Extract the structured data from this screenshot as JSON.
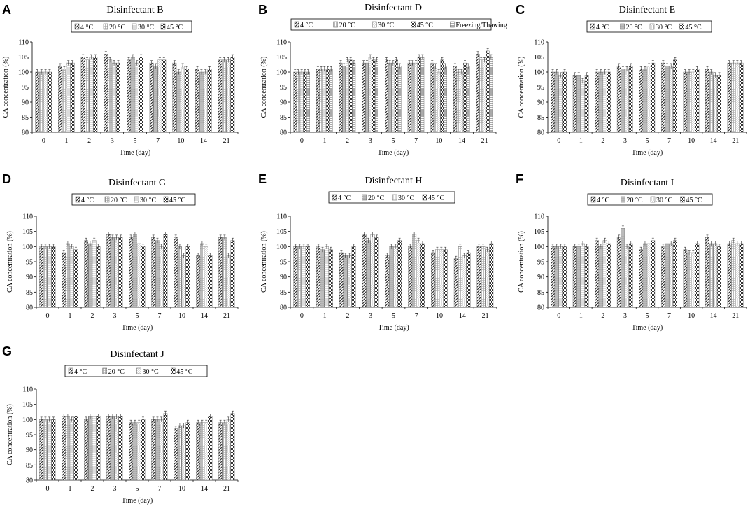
{
  "figure": {
    "xlabel": "Time (day)",
    "ylabel": "CA concentration (%)",
    "colors": {
      "bar_stroke": "#444444",
      "axis": "#000000",
      "background": "#ffffff"
    }
  },
  "chart_data": [
    {
      "type": "bar",
      "panel": "A",
      "title": "Disinfectant B",
      "xlabel": "Time (day)",
      "ylabel": "CA concentration (%)",
      "categories": [
        "0",
        "1",
        "2",
        "3",
        "5",
        "7",
        "10",
        "14",
        "21"
      ],
      "ylim": [
        80,
        110
      ],
      "yticks": [
        80,
        85,
        90,
        95,
        100,
        105,
        110
      ],
      "series": [
        {
          "name": "4 °C",
          "values": [
            100,
            102,
            105,
            106,
            104,
            103,
            103,
            101,
            104
          ]
        },
        {
          "name": "20 °C",
          "values": [
            100,
            101,
            104,
            104,
            105,
            102,
            100,
            100,
            104
          ]
        },
        {
          "name": "30 °C",
          "values": [
            100,
            103,
            105,
            103,
            103,
            104,
            102,
            100,
            104
          ]
        },
        {
          "name": "45 °C",
          "values": [
            100,
            103,
            105,
            103,
            105,
            104,
            101,
            101,
            105
          ]
        }
      ]
    },
    {
      "type": "bar",
      "panel": "B",
      "title": "Disinfectant D",
      "xlabel": "Time (day)",
      "ylabel": "CA concentration (%)",
      "categories": [
        "0",
        "1",
        "2",
        "3",
        "5",
        "7",
        "10",
        "14",
        "21"
      ],
      "ylim": [
        80,
        110
      ],
      "yticks": [
        80,
        85,
        90,
        95,
        100,
        105,
        110
      ],
      "series": [
        {
          "name": "4 °C",
          "values": [
            100,
            101,
            103,
            103,
            104,
            103,
            103,
            102,
            106
          ]
        },
        {
          "name": "20 °C",
          "values": [
            100,
            101,
            102,
            103,
            103,
            103,
            102,
            100,
            104
          ]
        },
        {
          "name": "30 °C",
          "values": [
            100,
            101,
            104,
            105,
            103,
            103,
            100,
            100,
            104
          ]
        },
        {
          "name": "45 °C",
          "values": [
            100,
            101,
            104,
            104,
            104,
            105,
            104,
            103,
            107
          ]
        },
        {
          "name": "Freezing/Thawing",
          "values": [
            100,
            101,
            103,
            104,
            102,
            105,
            102,
            102,
            105
          ]
        }
      ]
    },
    {
      "type": "bar",
      "panel": "C",
      "title": "Disinfectant E",
      "xlabel": "Time (day)",
      "ylabel": "CA concentration (%)",
      "categories": [
        "0",
        "1",
        "2",
        "3",
        "5",
        "7",
        "10",
        "14",
        "21"
      ],
      "ylim": [
        80,
        110
      ],
      "yticks": [
        80,
        85,
        90,
        95,
        100,
        105,
        110
      ],
      "series": [
        {
          "name": "4 °C",
          "values": [
            100,
            99,
            100,
            102,
            101,
            103,
            100,
            101,
            103
          ]
        },
        {
          "name": "20 °C",
          "values": [
            100,
            99,
            100,
            101,
            101,
            102,
            100,
            100,
            103
          ]
        },
        {
          "name": "30 °C",
          "values": [
            99,
            97,
            100,
            101,
            102,
            102,
            100,
            99,
            103
          ]
        },
        {
          "name": "45 °C",
          "values": [
            100,
            99,
            100,
            102,
            103,
            104,
            101,
            99,
            103
          ]
        }
      ]
    },
    {
      "type": "bar",
      "panel": "D",
      "title": "Disinfectant G",
      "xlabel": "Time (day)",
      "ylabel": "CA concentration (%)",
      "categories": [
        "0",
        "1",
        "2",
        "3",
        "5",
        "7",
        "10",
        "14",
        "21"
      ],
      "ylim": [
        80,
        110
      ],
      "yticks": [
        80,
        85,
        90,
        95,
        100,
        105,
        110
      ],
      "series": [
        {
          "name": "4 °C",
          "values": [
            100,
            98,
            102,
            104,
            103,
            103,
            103,
            97,
            103
          ]
        },
        {
          "name": "20 °C",
          "values": [
            100,
            101,
            101,
            103,
            104,
            102,
            100,
            101,
            103
          ]
        },
        {
          "name": "30 °C",
          "values": [
            100,
            100,
            102,
            103,
            101,
            100,
            97,
            100,
            97
          ]
        },
        {
          "name": "45 °C",
          "values": [
            100,
            99,
            100,
            103,
            100,
            104,
            100,
            97,
            102
          ]
        }
      ]
    },
    {
      "type": "bar",
      "panel": "E",
      "title": "Disinfectant H",
      "xlabel": "Time (day)",
      "ylabel": "CA concentration (%)",
      "categories": [
        "0",
        "1",
        "2",
        "3",
        "5",
        "7",
        "10",
        "14",
        "21"
      ],
      "ylim": [
        80,
        110
      ],
      "yticks": [
        80,
        85,
        90,
        95,
        100,
        105,
        110
      ],
      "series": [
        {
          "name": "4 °C",
          "values": [
            100,
            100,
            98,
            104,
            97,
            100,
            98,
            96,
            100
          ]
        },
        {
          "name": "20 °C",
          "values": [
            100,
            99,
            97,
            102,
            100,
            104,
            99,
            100,
            100
          ]
        },
        {
          "name": "30 °C",
          "values": [
            100,
            100,
            97,
            104,
            100,
            102,
            99,
            97,
            99
          ]
        },
        {
          "name": "45 °C",
          "values": [
            100,
            99,
            100,
            103,
            102,
            101,
            99,
            98,
            101
          ]
        }
      ]
    },
    {
      "type": "bar",
      "panel": "F",
      "title": "Disinfectant I",
      "xlabel": "Time (day)",
      "ylabel": "CA concentration (%)",
      "categories": [
        "0",
        "1",
        "2",
        "3",
        "5",
        "7",
        "10",
        "14",
        "21"
      ],
      "ylim": [
        80,
        110
      ],
      "yticks": [
        80,
        85,
        90,
        95,
        100,
        105,
        110
      ],
      "series": [
        {
          "name": "4 °C",
          "values": [
            100,
            100,
            102,
            103,
            99,
            100,
            99,
            103,
            101
          ]
        },
        {
          "name": "20 °C",
          "values": [
            100,
            100,
            100,
            106,
            101,
            101,
            98,
            101,
            102
          ]
        },
        {
          "name": "30 °C",
          "values": [
            100,
            101,
            102,
            100,
            101,
            101,
            98,
            101,
            101
          ]
        },
        {
          "name": "45 °C",
          "values": [
            100,
            100,
            101,
            101,
            102,
            102,
            101,
            100,
            101
          ]
        }
      ]
    },
    {
      "type": "bar",
      "panel": "G",
      "title": "Disinfectant J",
      "xlabel": "Time (day)",
      "ylabel": "CA concentration (%)",
      "categories": [
        "0",
        "1",
        "2",
        "3",
        "5",
        "7",
        "10",
        "14",
        "21"
      ],
      "ylim": [
        80,
        110
      ],
      "yticks": [
        80,
        85,
        90,
        95,
        100,
        105,
        110
      ],
      "series": [
        {
          "name": "4 °C",
          "values": [
            100,
            101,
            100,
            101,
            99,
            100,
            97,
            99,
            99
          ]
        },
        {
          "name": "20 °C",
          "values": [
            100,
            101,
            101,
            101,
            99,
            100,
            98,
            99,
            99
          ]
        },
        {
          "name": "30 °C",
          "values": [
            100,
            100,
            101,
            101,
            99,
            100,
            98,
            99,
            100
          ]
        },
        {
          "name": "45 °C",
          "values": [
            100,
            101,
            101,
            101,
            100,
            102,
            99,
            101,
            102
          ]
        }
      ]
    }
  ]
}
